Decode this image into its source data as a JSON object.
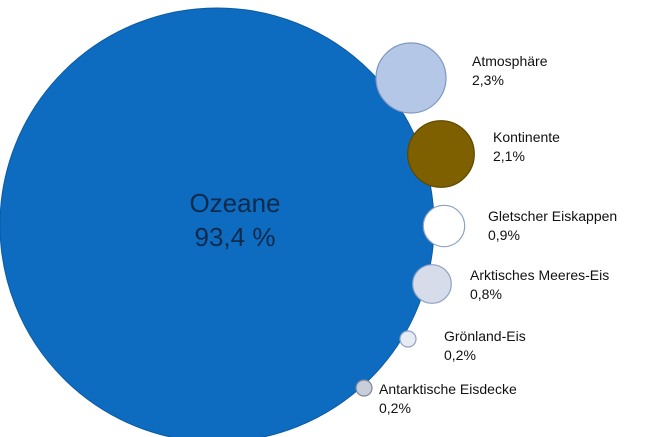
{
  "chart_data": {
    "type": "bubble",
    "title": "",
    "series": [
      {
        "name": "Ozeane",
        "value": 93.4,
        "display": "93,4 %",
        "color": "#0d6cc0",
        "stroke": "#0b5aa3"
      },
      {
        "name": "Atmosphäre",
        "value": 2.3,
        "display": "2,3%",
        "color": "#b4c7e7",
        "stroke": "#7f98c2"
      },
      {
        "name": "Kontinente",
        "value": 2.1,
        "display": "2,1%",
        "color": "#7f6000",
        "stroke": "#5e4700"
      },
      {
        "name": "Gletscher Eiskappen",
        "value": 0.9,
        "display": "0,9%",
        "color": "#ffffff",
        "stroke": "#8ea2c2"
      },
      {
        "name": "Arktisches Meeres-Eis",
        "value": 0.8,
        "display": "0,8%",
        "color": "#d6dcea",
        "stroke": "#8ea2c2"
      },
      {
        "name": "Grönland-Eis",
        "value": 0.2,
        "display": "0,2%",
        "color": "#e7ebf4",
        "stroke": "#8ea2c2"
      },
      {
        "name": "Antarktische Eisdecke",
        "value": 0.2,
        "display": "0,2%",
        "color": "#c9cedb",
        "stroke": "#7e8594"
      }
    ]
  }
}
